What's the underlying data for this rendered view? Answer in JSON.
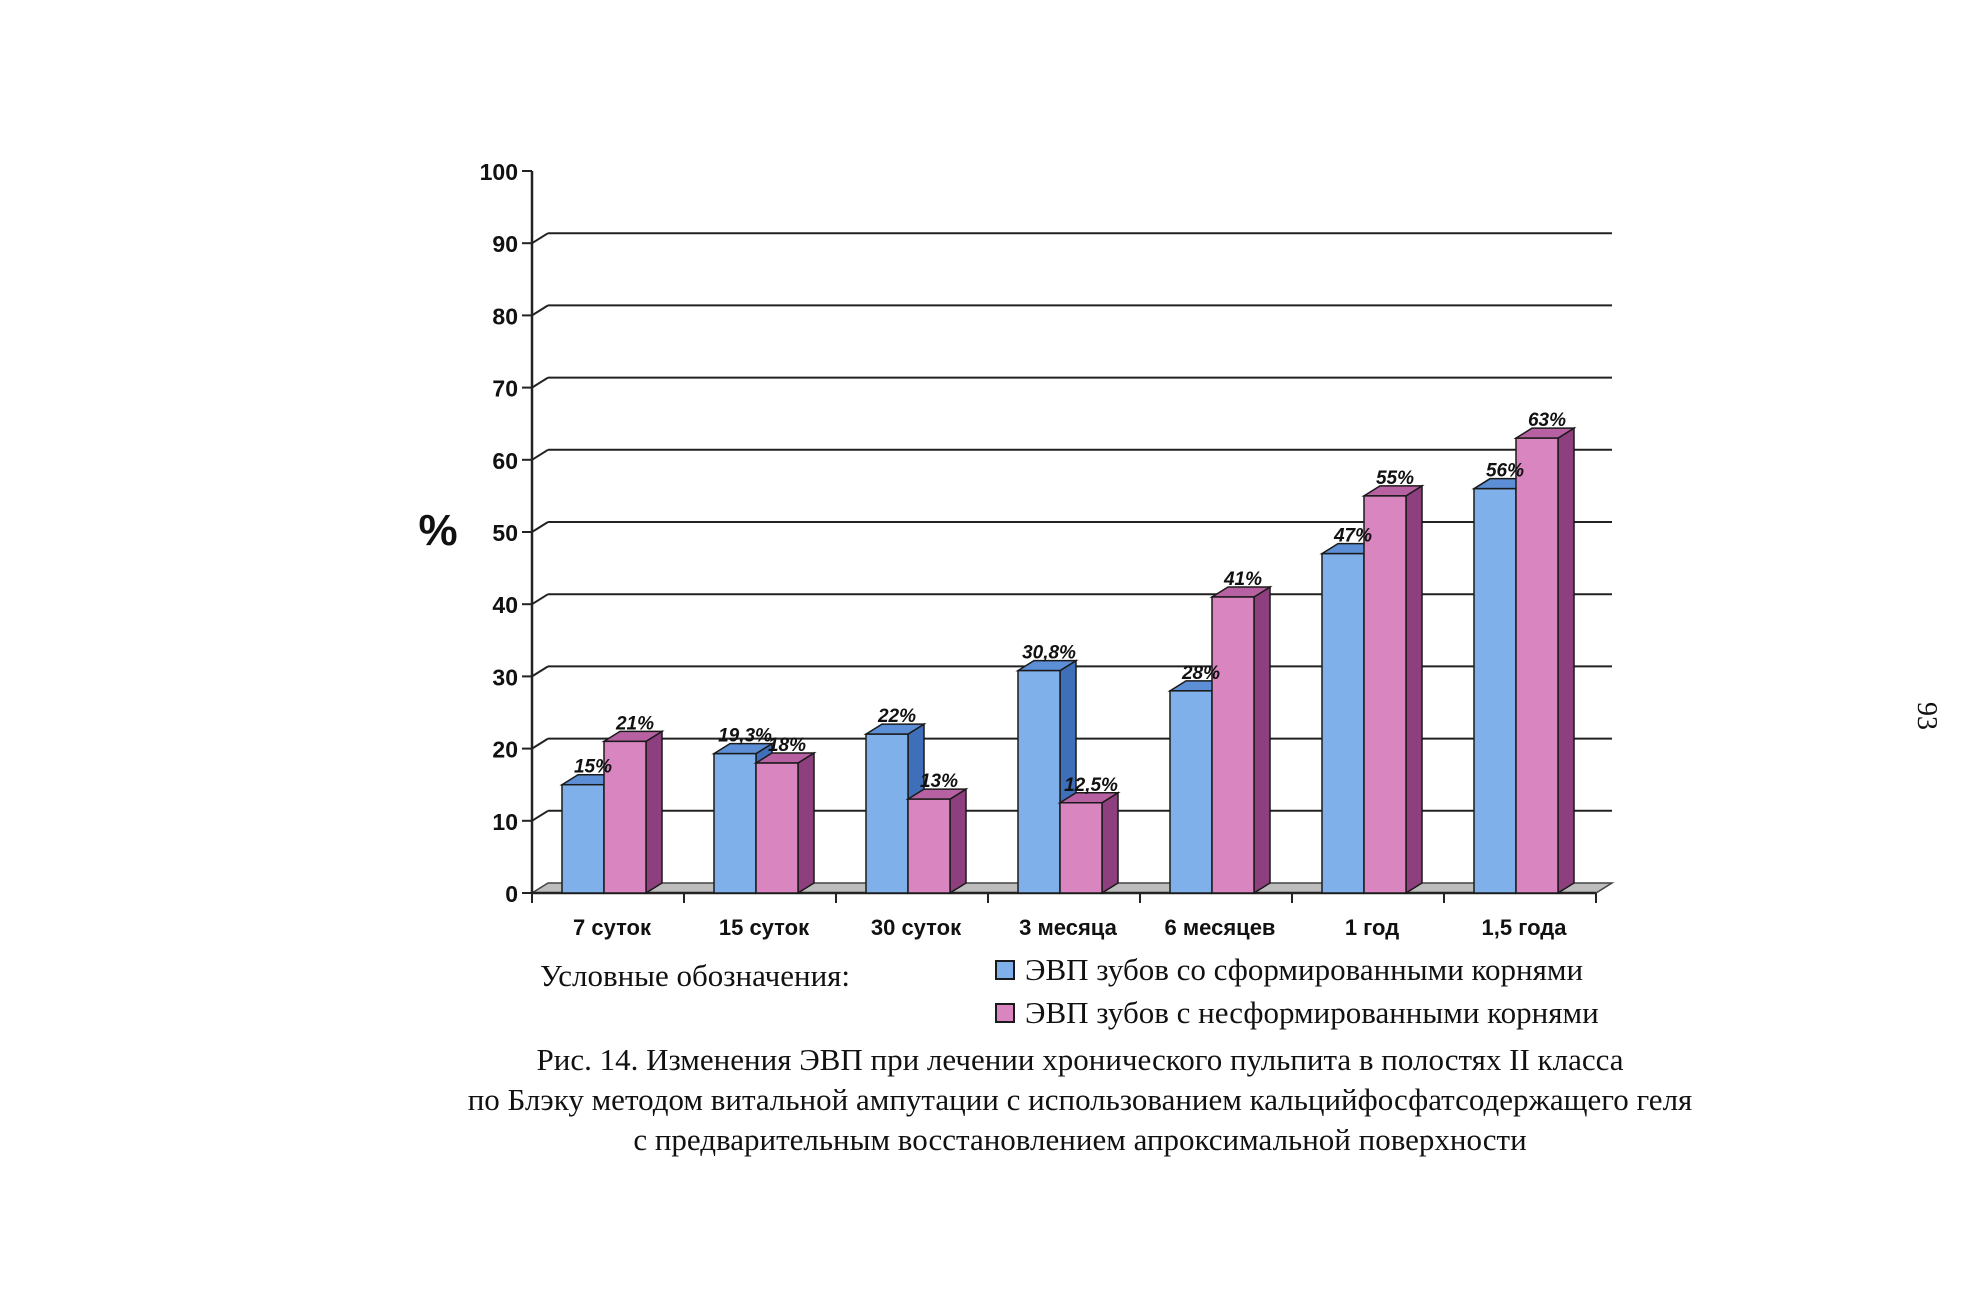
{
  "chart_data": {
    "type": "bar",
    "ylabel": "%",
    "ylim": [
      0,
      100
    ],
    "yticks": [
      0,
      10,
      20,
      30,
      40,
      50,
      60,
      70,
      80,
      90,
      100
    ],
    "grid": true,
    "three_d": true,
    "categories": [
      "7 суток",
      "15 суток",
      "30 суток",
      "3 месяца",
      "6 месяцев",
      "1 год",
      "1,5 года"
    ],
    "series": [
      {
        "name": "ЭВП зубов со сформированными корнями",
        "color": "#7fb0ea",
        "side_color": "#3f6fb8",
        "top_color": "#5d8fd6",
        "values": [
          15,
          19.3,
          22,
          30.8,
          28,
          47,
          56
        ],
        "labels": [
          "15%",
          "19,3%",
          "22%",
          "30,8%",
          "28%",
          "47%",
          "56%"
        ]
      },
      {
        "name": "ЭВП зубов с несформированными корнями",
        "color": "#d986c0",
        "side_color": "#8e3f7e",
        "top_color": "#b861a2",
        "values": [
          21,
          18,
          13,
          12.5,
          41,
          55,
          63
        ],
        "labels": [
          "21%",
          "18%",
          "13%",
          "12,5%",
          "41%",
          "55%",
          "63%"
        ]
      }
    ]
  },
  "legend": {
    "title": "Условные обозначения:",
    "items": [
      "ЭВП зубов со сформированными корнями",
      "ЭВП зубов с несформированными корнями"
    ]
  },
  "caption": {
    "line1": "Рис. 14.  Изменения ЭВП при лечении хронического пульпита в полостях II класса",
    "line2": "по Блэку методом витальной ампутации с использованием кальцийфосфатсодержащего геля",
    "line3": "с предварительным восстановлением апроксимальной поверхности"
  },
  "page_number": "93"
}
